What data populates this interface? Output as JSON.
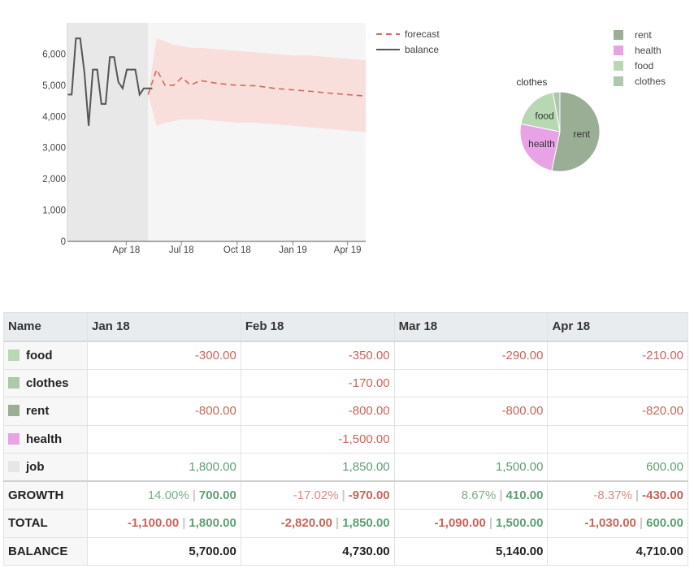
{
  "chart_data": [
    {
      "type": "line",
      "title": "",
      "xlabel": "",
      "ylabel": "",
      "ylim": [
        0,
        7000
      ],
      "y_ticks": [
        0,
        1000,
        2000,
        3000,
        4000,
        5000,
        6000
      ],
      "y_tick_labels": [
        "0",
        "1,000",
        "2,000",
        "3,000",
        "4,000",
        "5,000",
        "6,000"
      ],
      "x_ticks": [
        "Apr 18",
        "Jul 18",
        "Oct 18",
        "Jan 19",
        "Apr 19"
      ],
      "grid": true,
      "legend_position": "top-right",
      "series": [
        {
          "name": "balance",
          "color": "#555555",
          "style": "solid",
          "x": [
            "2017-12-25",
            "2018-01-01",
            "2018-01-08",
            "2018-01-15",
            "2018-01-22",
            "2018-01-29",
            "2018-02-05",
            "2018-02-12",
            "2018-02-19",
            "2018-02-26",
            "2018-03-05",
            "2018-03-12",
            "2018-03-19",
            "2018-03-26",
            "2018-04-02",
            "2018-04-09",
            "2018-04-16",
            "2018-04-23",
            "2018-04-30",
            "2018-05-07",
            "2018-05-14"
          ],
          "values": [
            4700,
            4700,
            6500,
            6500,
            5400,
            3700,
            5500,
            5500,
            4400,
            4400,
            5900,
            5900,
            5100,
            4900,
            5500,
            5500,
            5500,
            4700,
            4900,
            4900,
            4900
          ]
        },
        {
          "name": "forecast",
          "color": "#d06a60",
          "style": "dashed",
          "x": [
            "2018-05-07",
            "2018-05-21",
            "2018-06-04",
            "2018-06-18",
            "2018-07-02",
            "2018-07-16",
            "2018-08-01",
            "2018-09-01",
            "2018-10-01",
            "2018-11-01",
            "2018-12-01",
            "2019-01-01",
            "2019-02-01",
            "2019-03-01",
            "2019-04-01",
            "2019-05-01"
          ],
          "values": [
            4700,
            5500,
            5000,
            5000,
            5250,
            5000,
            5150,
            5050,
            5000,
            4980,
            4900,
            4850,
            4800,
            4750,
            4700,
            4650
          ],
          "band_upper": [
            4700,
            6500,
            6400,
            6300,
            6250,
            6200,
            6200,
            6150,
            6100,
            6050,
            6000,
            5950,
            5950,
            5900,
            5850,
            5800
          ],
          "band_lower": [
            4700,
            3700,
            3800,
            3850,
            3900,
            3900,
            3900,
            3850,
            3800,
            3800,
            3750,
            3700,
            3650,
            3600,
            3550,
            3500
          ],
          "band_color": "#f8ddd9"
        }
      ]
    },
    {
      "type": "pie",
      "legend_position": "right",
      "slices": [
        {
          "label": "rent",
          "value": 3220,
          "color": "#9aae95"
        },
        {
          "label": "health",
          "value": 1500,
          "color": "#e7a3e6"
        },
        {
          "label": "food",
          "value": 1150,
          "color": "#b8d8b3"
        },
        {
          "label": "clothes",
          "value": 170,
          "color": "#adc8ab"
        }
      ]
    }
  ],
  "table": {
    "header_name": "Name",
    "months": [
      "Jan 18",
      "Feb 18",
      "Mar 18",
      "Apr 18"
    ],
    "rows": [
      {
        "name": "food",
        "color": "#b8d8b3",
        "values": [
          "-300.00",
          "-350.00",
          "-290.00",
          "-210.00"
        ]
      },
      {
        "name": "clothes",
        "color": "#adc8ab",
        "values": [
          "",
          "-170.00",
          "",
          ""
        ]
      },
      {
        "name": "rent",
        "color": "#9aae95",
        "values": [
          "-800.00",
          "-800.00",
          "-800.00",
          "-820.00"
        ]
      },
      {
        "name": "health",
        "color": "#e7a3e6",
        "values": [
          "",
          "-1,500.00",
          "",
          ""
        ]
      },
      {
        "name": "job",
        "color": "#e6e6e6",
        "values": [
          "1,800.00",
          "1,850.00",
          "1,500.00",
          "600.00"
        ]
      }
    ],
    "growth": {
      "label": "GROWTH",
      "cells": [
        {
          "pct": "14.00%",
          "amount": "700.00"
        },
        {
          "pct": "-17.02%",
          "amount": "-970.00"
        },
        {
          "pct": "8.67%",
          "amount": "410.00"
        },
        {
          "pct": "-8.37%",
          "amount": "-430.00"
        }
      ]
    },
    "total": {
      "label": "TOTAL",
      "cells": [
        {
          "expense": "-1,100.00",
          "income": "1,800.00"
        },
        {
          "expense": "-2,820.00",
          "income": "1,850.00"
        },
        {
          "expense": "-1,090.00",
          "income": "1,500.00"
        },
        {
          "expense": "-1,030.00",
          "income": "600.00"
        }
      ]
    },
    "balance": {
      "label": "BALANCE",
      "values": [
        "5,700.00",
        "4,730.00",
        "5,140.00",
        "4,710.00"
      ]
    },
    "separator": "|"
  }
}
